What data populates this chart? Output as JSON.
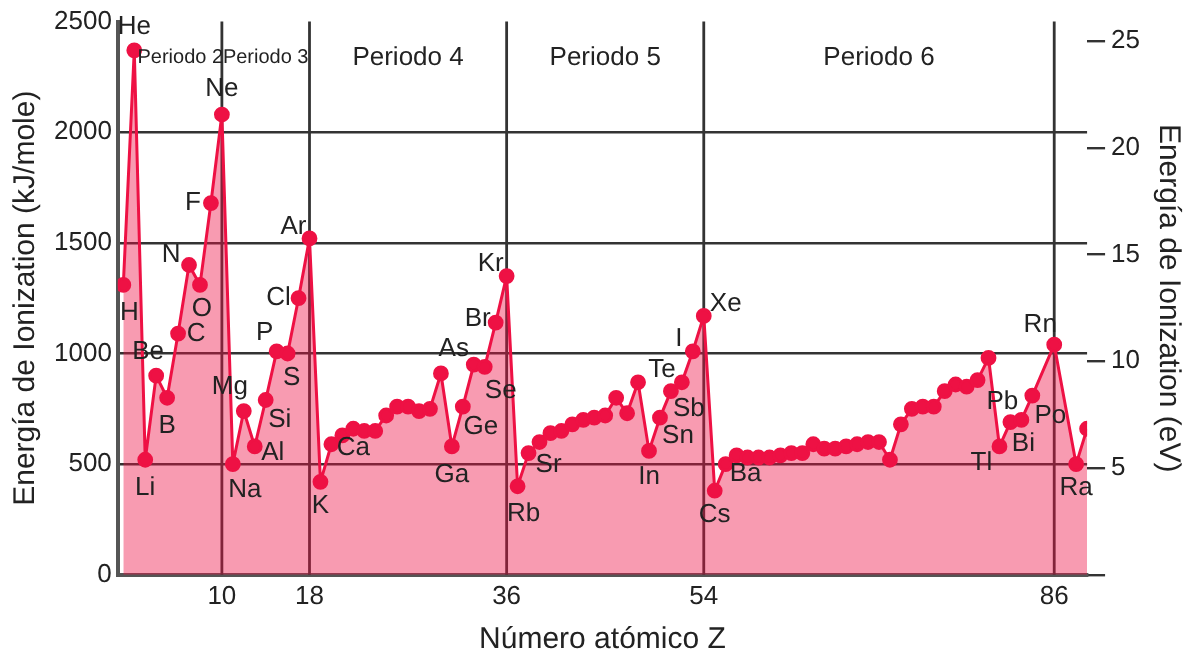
{
  "chart_data": {
    "type": "area",
    "xlabel": "Número atómico Z",
    "ylabel": "Energía de Ionization (kJ/mole)",
    "y2label": "Energía de Ionization (eV)",
    "x": [
      1,
      2,
      3,
      4,
      5,
      6,
      7,
      8,
      9,
      10,
      11,
      12,
      13,
      14,
      15,
      16,
      17,
      18,
      19,
      20,
      21,
      22,
      23,
      24,
      25,
      26,
      27,
      28,
      29,
      30,
      31,
      32,
      33,
      34,
      35,
      36,
      37,
      38,
      39,
      40,
      41,
      42,
      43,
      44,
      45,
      46,
      47,
      48,
      49,
      50,
      51,
      52,
      53,
      54,
      55,
      56,
      57,
      58,
      59,
      60,
      61,
      62,
      63,
      64,
      65,
      66,
      67,
      68,
      69,
      70,
      71,
      72,
      73,
      74,
      75,
      76,
      77,
      78,
      79,
      80,
      81,
      82,
      83,
      84,
      85,
      86,
      87,
      88,
      89
    ],
    "series": [
      {
        "color": "#ee1144",
        "values": [
          1310,
          2370,
          520,
          900,
          800,
          1090,
          1400,
          1310,
          1680,
          2080,
          500,
          740,
          580,
          790,
          1010,
          1000,
          1250,
          1520,
          420,
          590,
          630,
          660,
          650,
          650,
          720,
          760,
          760,
          740,
          750,
          910,
          580,
          760,
          950,
          940,
          1140,
          1350,
          400,
          550,
          600,
          640,
          650,
          680,
          700,
          710,
          720,
          800,
          730,
          870,
          560,
          710,
          830,
          870,
          1010,
          1170,
          380,
          500,
          540,
          530,
          530,
          530,
          540,
          550,
          550,
          590,
          570,
          570,
          580,
          590,
          600,
          600,
          520,
          680,
          750,
          760,
          760,
          830,
          860,
          850,
          880,
          980,
          580,
          690,
          700,
          810,
          null,
          1040,
          null,
          500,
          660
        ]
      }
    ],
    "xlim": [
      0.5,
      89
    ],
    "xticks": [
      10,
      18,
      36,
      54,
      86
    ],
    "ylim": [
      0,
      2500
    ],
    "yticks": [
      0,
      500,
      1000,
      1500,
      2000,
      2500
    ],
    "y2lim": [
      0,
      25.91
    ],
    "y2ticks": [
      {
        "value": 0,
        "label": null
      },
      5,
      10,
      15,
      20,
      25
    ],
    "grid": "y",
    "legend": false,
    "marker": "circle",
    "line_style": "solid",
    "ref_lines": [
      {
        "axis": "x",
        "value": 10,
        "color": "#333333"
      },
      {
        "axis": "x",
        "value": 18,
        "color": "#333333"
      },
      {
        "axis": "x",
        "value": 36,
        "color": "#333333"
      },
      {
        "axis": "x",
        "value": 54,
        "color": "#333333"
      },
      {
        "axis": "x",
        "value": 86,
        "color": "#333333"
      }
    ],
    "annotations": [
      "Periodo 2",
      "Periodo 3",
      "Periodo 4",
      "Periodo 5",
      "Periodo 6",
      {
        "text": "H",
        "x": 1,
        "y": 1310
      },
      {
        "text": "He",
        "x": 2,
        "y": 2370
      },
      {
        "text": "Li",
        "x": 3,
        "y": 520
      },
      {
        "text": "Be",
        "x": 4,
        "y": 900
      },
      {
        "text": "B",
        "x": 5,
        "y": 800
      },
      {
        "text": "C",
        "x": 6,
        "y": 1090
      },
      {
        "text": "N",
        "x": 7,
        "y": 1400
      },
      {
        "text": "O",
        "x": 8,
        "y": 1310
      },
      {
        "text": "F",
        "x": 9,
        "y": 1680
      },
      {
        "text": "Ne",
        "x": 10,
        "y": 2080
      },
      {
        "text": "Na",
        "x": 11,
        "y": 500
      },
      {
        "text": "Mg",
        "x": 12,
        "y": 740
      },
      {
        "text": "Al",
        "x": 13,
        "y": 580
      },
      {
        "text": "Si",
        "x": 14,
        "y": 790
      },
      {
        "text": "P",
        "x": 15,
        "y": 1010
      },
      {
        "text": "S",
        "x": 16,
        "y": 1000
      },
      {
        "text": "Cl",
        "x": 17,
        "y": 1250
      },
      {
        "text": "Ar",
        "x": 18,
        "y": 1520
      },
      {
        "text": "K",
        "x": 19,
        "y": 420
      },
      {
        "text": "Ca",
        "x": 20,
        "y": 590
      },
      {
        "text": "Ga",
        "x": 31,
        "y": 580
      },
      {
        "text": "Ge",
        "x": 32,
        "y": 760
      },
      {
        "text": "As",
        "x": 33,
        "y": 950
      },
      {
        "text": "Se",
        "x": 34,
        "y": 940
      },
      {
        "text": "Br",
        "x": 35,
        "y": 1140
      },
      {
        "text": "Kr",
        "x": 36,
        "y": 1350
      },
      {
        "text": "Rb",
        "x": 37,
        "y": 400
      },
      {
        "text": "Sr",
        "x": 38,
        "y": 550
      },
      {
        "text": "In",
        "x": 49,
        "y": 560
      },
      {
        "text": "Sn",
        "x": 50,
        "y": 710
      },
      {
        "text": "Sb",
        "x": 51,
        "y": 830
      },
      {
        "text": "Te",
        "x": 52,
        "y": 870
      },
      {
        "text": "I",
        "x": 53,
        "y": 1010
      },
      {
        "text": "Xe",
        "x": 54,
        "y": 1170
      },
      {
        "text": "Cs",
        "x": 55,
        "y": 380
      },
      {
        "text": "Ba",
        "x": 56,
        "y": 500
      },
      {
        "text": "Tl",
        "x": 81,
        "y": 580
      },
      {
        "text": "Pb",
        "x": 82,
        "y": 690
      },
      {
        "text": "Bi",
        "x": 83,
        "y": 700
      },
      {
        "text": "Po",
        "x": 84,
        "y": 810
      },
      {
        "text": "Rn",
        "x": 86,
        "y": 1040
      },
      {
        "text": "Ra",
        "x": 88,
        "y": 500
      }
    ]
  }
}
